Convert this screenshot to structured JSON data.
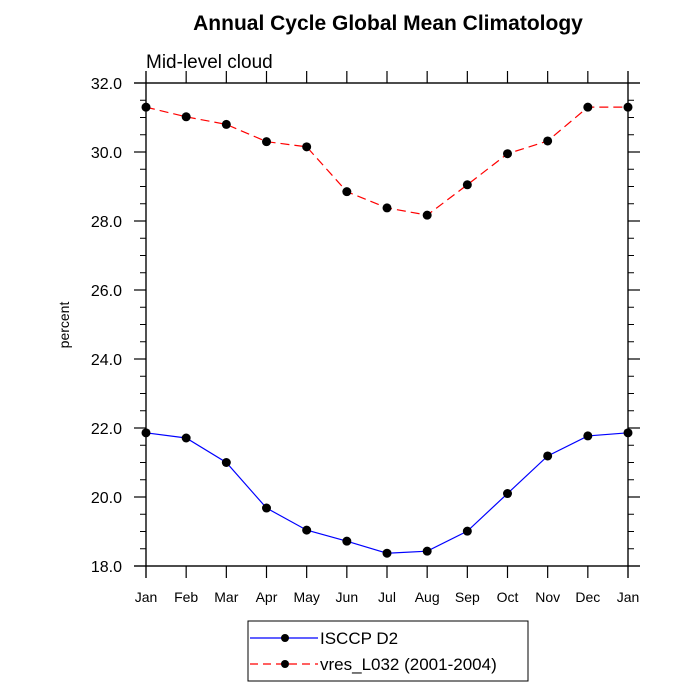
{
  "chart_data": {
    "type": "line",
    "title": "Annual Cycle Global Mean Climatology",
    "subtitle": "Mid-level cloud",
    "xlabel": "",
    "ylabel": "percent",
    "categories": [
      "Jan",
      "Feb",
      "Mar",
      "Apr",
      "May",
      "Jun",
      "Jul",
      "Aug",
      "Sep",
      "Oct",
      "Nov",
      "Dec",
      "Jan"
    ],
    "ylim": [
      18.0,
      32.0
    ],
    "yticks": [
      18.0,
      20.0,
      22.0,
      24.0,
      26.0,
      28.0,
      30.0,
      32.0
    ],
    "ytick_labels": [
      "18.0",
      "20.0",
      "22.0",
      "24.0",
      "26.0",
      "28.0",
      "30.0",
      "32.0"
    ],
    "y_minor_step": 0.5,
    "grid": false,
    "legend_position": "bottom-center",
    "series": [
      {
        "name": "ISCCP D2",
        "color": "#0000ff",
        "line_style": "solid",
        "marker": "filled-circle",
        "values": [
          21.86,
          21.71,
          21.0,
          19.68,
          19.04,
          18.72,
          18.37,
          18.43,
          19.01,
          20.1,
          21.19,
          21.77,
          21.86
        ]
      },
      {
        "name": "vres_L032 (2001-2004)",
        "color": "#ff0000",
        "line_style": "dashed",
        "marker": "filled-circle",
        "values": [
          31.3,
          31.02,
          30.8,
          30.3,
          30.15,
          28.85,
          28.38,
          28.17,
          29.05,
          29.95,
          30.32,
          31.3,
          31.3
        ]
      }
    ]
  }
}
